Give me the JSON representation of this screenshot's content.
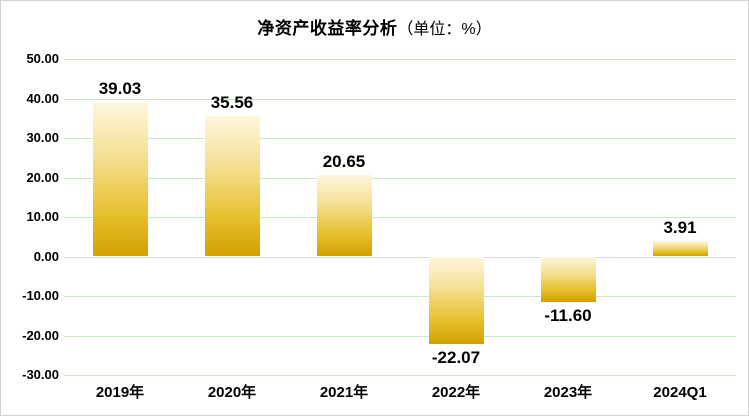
{
  "chart_data": {
    "type": "bar",
    "title": "净资产收益率分析",
    "title_unit": "（单位：%）",
    "categories": [
      "2019年",
      "2020年",
      "2021年",
      "2022年",
      "2023年",
      "2024Q1"
    ],
    "values": [
      39.03,
      35.56,
      20.65,
      -22.07,
      -11.6,
      3.91
    ],
    "value_labels": [
      "39.03",
      "35.56",
      "20.65",
      "-22.07",
      "-11.60",
      "3.91"
    ],
    "xlabel": "",
    "ylabel": "",
    "ylim": [
      -30,
      50
    ],
    "yticks": [
      50,
      40,
      30,
      20,
      10,
      0,
      -10,
      -20,
      -30
    ],
    "ytick_labels": [
      "50.00",
      "40.00",
      "30.00",
      "20.00",
      "10.00",
      "0.00",
      "-10.00",
      "-20.00",
      "-30.00"
    ],
    "grid": true,
    "legend_position": "none",
    "colors": {
      "bar_gradient_top": "#FEF7DD",
      "bar_gradient_mid1": "#F6E093",
      "bar_gradient_mid2": "#E7C130",
      "bar_gradient_bottom": "#D2A000",
      "gridline": "#CDE6CA",
      "zero_line": "#D9D9D9",
      "frame_border": "#D3D3D3",
      "text": "#000000"
    }
  }
}
